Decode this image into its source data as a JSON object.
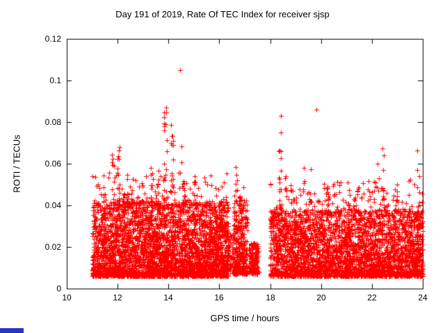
{
  "chart_data": {
    "type": "scatter",
    "title": "Day 191 of 2019, Rate Of TEC Index for receiver sjsp",
    "xlabel": "GPS time / hours",
    "ylabel": "ROTI / TECUs",
    "xlim": [
      10,
      24
    ],
    "ylim": [
      0,
      0.12
    ],
    "xticks": {
      "values": [
        10,
        12,
        14,
        16,
        18,
        20,
        22,
        24
      ],
      "labels": [
        "10",
        "12",
        "14",
        "16",
        "18",
        "20",
        "22",
        "24"
      ]
    },
    "yticks": {
      "values": [
        0,
        0.02,
        0.04,
        0.06,
        0.08,
        0.1,
        0.12
      ],
      "labels": [
        "0",
        "0.02",
        "0.04",
        "0.06",
        "0.08",
        "0.1",
        "0.12"
      ]
    },
    "grid": false,
    "legend": null,
    "marker": "plus",
    "marker_color": "#ff0000",
    "axis_color": "#000000",
    "background": "#ffffff",
    "seed": 20191911,
    "segments": [
      {
        "x0": 11.0,
        "x1": 16.35,
        "n": 3400,
        "ymin": 0.006,
        "ymax": 0.042,
        "pow": 1.8
      },
      {
        "x0": 11.0,
        "x1": 16.35,
        "n": 130,
        "ymin": 0.04,
        "ymax": 0.056,
        "pow": 1.4
      },
      {
        "x0": 16.3,
        "x1": 16.55,
        "n": 60,
        "ymin": 0.007,
        "ymax": 0.028,
        "pow": 1.5
      },
      {
        "x0": 16.55,
        "x1": 17.1,
        "n": 320,
        "ymin": 0.007,
        "ymax": 0.045,
        "pow": 1.8
      },
      {
        "x0": 17.15,
        "x1": 17.55,
        "n": 170,
        "ymin": 0.007,
        "ymax": 0.022,
        "pow": 1.3
      },
      {
        "x0": 18.0,
        "x1": 24.0,
        "n": 3100,
        "ymin": 0.006,
        "ymax": 0.038,
        "pow": 1.8
      },
      {
        "x0": 18.0,
        "x1": 24.0,
        "n": 140,
        "ymin": 0.036,
        "ymax": 0.052,
        "pow": 1.4
      }
    ],
    "spike_defaults": {
      "width": 0.12,
      "ymin": 0.018,
      "pow": 1.2
    },
    "spikes": [
      [
        11.5,
        0.05,
        14
      ],
      [
        11.82,
        0.066,
        18
      ],
      [
        12.05,
        0.071,
        14
      ],
      [
        12.43,
        0.055,
        12
      ],
      [
        12.98,
        0.05,
        10
      ],
      [
        13.33,
        0.06,
        16
      ],
      [
        13.6,
        0.058,
        12
      ],
      [
        13.88,
        0.088,
        26
      ],
      [
        14.13,
        0.081,
        20
      ],
      [
        14.55,
        0.072,
        10
      ],
      [
        15.03,
        0.052,
        10
      ],
      [
        15.44,
        0.047,
        10
      ],
      [
        15.85,
        0.048,
        10
      ],
      [
        16.15,
        0.045,
        8
      ],
      [
        16.67,
        0.06,
        14
      ],
      [
        16.94,
        0.05,
        8
      ],
      [
        18.4,
        0.089,
        26
      ],
      [
        18.6,
        0.058,
        10
      ],
      [
        18.86,
        0.048,
        8
      ],
      [
        19.32,
        0.058,
        12
      ],
      [
        19.6,
        0.062,
        10
      ],
      [
        20.23,
        0.055,
        10
      ],
      [
        20.5,
        0.06,
        10
      ],
      [
        21.05,
        0.05,
        8
      ],
      [
        21.49,
        0.065,
        12
      ],
      [
        21.95,
        0.052,
        8
      ],
      [
        22.22,
        0.062,
        10
      ],
      [
        22.42,
        0.07,
        10
      ],
      [
        22.96,
        0.056,
        8
      ],
      [
        23.5,
        0.06,
        10
      ],
      [
        23.84,
        0.07,
        12
      ]
    ],
    "outliers": [
      {
        "x": 14.46,
        "y": 0.105
      },
      {
        "x": 19.82,
        "y": 0.086
      }
    ]
  },
  "artifact": {
    "color": "#2a35c8"
  }
}
